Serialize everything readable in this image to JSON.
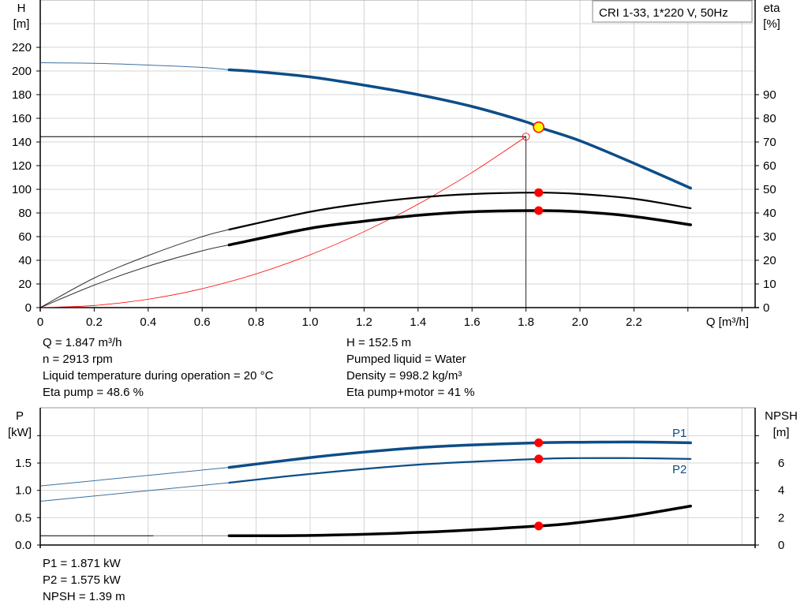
{
  "title_box": "CRI 1-33, 1*220 V, 50Hz",
  "info_top_left": [
    "Q = 1.847 m³/h",
    "n = 2913 rpm",
    "Liquid temperature during operation = 20 °C",
    "Eta pump = 48.6 %"
  ],
  "info_top_right": [
    "H = 152.5 m",
    "Pumped liquid = Water",
    "Density = 998.2 kg/m³",
    "Eta pump+motor = 41 %"
  ],
  "info_bottom": [
    "P1 = 1.871 kW",
    "P2 = 1.575 kW",
    "NPSH = 1.39 m"
  ],
  "colors": {
    "head": "#0c4d87",
    "power": "#0c4d87",
    "efficiency": "#000000",
    "system": "#ff0000",
    "duty_point": "#ffff00",
    "markers": "#ff0000",
    "grid": "#d4d4d4"
  },
  "chart_data": [
    {
      "type": "line",
      "xlabel": "Q [m³/h]",
      "ylabel": "H\n[m]",
      "y2label": "eta\n[%]",
      "xlim": [
        0,
        2.6
      ],
      "ylim": [
        0,
        260
      ],
      "y2lim": [
        0,
        130
      ],
      "xticks": [
        "0",
        "0.2",
        "0.4",
        "0.6",
        "0.8",
        "1.0",
        "1.2",
        "1.4",
        "1.6",
        "1.8",
        "2.0",
        "2.2"
      ],
      "yticks": [
        "0",
        "20",
        "40",
        "60",
        "80",
        "100",
        "120",
        "140",
        "160",
        "180",
        "200",
        "220"
      ],
      "y2ticks": [
        "0",
        "10",
        "20",
        "30",
        "40",
        "50",
        "60",
        "70",
        "80",
        "90"
      ],
      "grid": true,
      "series": [
        {
          "axis": "H",
          "x": [
            0,
            0.2,
            0.4,
            0.6,
            0.7,
            0.8,
            1.0,
            1.2,
            1.4,
            1.6,
            1.8,
            1.847,
            2.0,
            2.2,
            2.41
          ],
          "y": [
            207,
            206.5,
            205,
            203,
            201,
            199.5,
            195,
            188,
            180,
            170,
            157,
            152.5,
            141,
            122,
            101
          ]
        },
        {
          "axis": "eta",
          "x": [
            0,
            0.2,
            0.4,
            0.6,
            0.7,
            1.0,
            1.2,
            1.4,
            1.6,
            1.847,
            2.0,
            2.2,
            2.41
          ],
          "y": [
            0,
            12.5,
            22,
            30,
            33,
            40.5,
            44,
            46.5,
            48,
            48.6,
            48,
            46,
            42
          ]
        },
        {
          "axis": "eta",
          "x": [
            0,
            0.2,
            0.4,
            0.6,
            0.7,
            1.0,
            1.2,
            1.4,
            1.6,
            1.847,
            2.0,
            2.2,
            2.41
          ],
          "y": [
            0,
            9.5,
            17.5,
            24,
            26.5,
            33.5,
            36.5,
            39,
            40.5,
            41,
            40.5,
            38.5,
            35
          ]
        },
        {
          "axis": "H",
          "x": [
            0,
            0.2,
            0.4,
            0.6,
            0.8,
            1.0,
            1.2,
            1.4,
            1.6,
            1.8
          ],
          "y": [
            0,
            1.8,
            7.1,
            16,
            28.5,
            44.6,
            64.2,
            87.4,
            114.2,
            144.5
          ]
        }
      ],
      "duty_point": {
        "Q": 1.847,
        "H": 152.5
      },
      "requested_point": {
        "Q": 1.8,
        "H": 144.5
      },
      "eta_points": [
        48.6,
        41
      ]
    },
    {
      "type": "line",
      "ylabel": "P\n[kW]",
      "y2label": "NPSH\n[m]",
      "xlim": [
        0,
        2.6
      ],
      "ylim": [
        0,
        2.5
      ],
      "y2lim": [
        0,
        10
      ],
      "yticks": [
        "0.0",
        "0.5",
        "1.0",
        "1.5"
      ],
      "y2ticks": [
        "0",
        "2",
        "4",
        "6"
      ],
      "grid": true,
      "series": [
        {
          "name": "P1",
          "axis": "P",
          "x": [
            0,
            0.7,
            1.0,
            1.2,
            1.4,
            1.6,
            1.847,
            2.0,
            2.2,
            2.41
          ],
          "y": [
            1.08,
            1.42,
            1.6,
            1.7,
            1.78,
            1.83,
            1.871,
            1.88,
            1.885,
            1.87
          ]
        },
        {
          "name": "P2",
          "axis": "P",
          "x": [
            0,
            0.7,
            1.0,
            1.4,
            1.847,
            2.0,
            2.2,
            2.41
          ],
          "y": [
            0.8,
            1.14,
            1.3,
            1.47,
            1.575,
            1.59,
            1.59,
            1.575
          ]
        },
        {
          "axis": "NPSH",
          "x": [
            0,
            0.7,
            1.0,
            1.4,
            1.847,
            2.0,
            2.2,
            2.41
          ],
          "y": [
            0.68,
            0.68,
            0.7,
            0.92,
            1.39,
            1.65,
            2.15,
            2.85
          ]
        }
      ],
      "points": {
        "P1": 1.871,
        "P2": 1.575,
        "NPSH": 1.39
      }
    }
  ]
}
